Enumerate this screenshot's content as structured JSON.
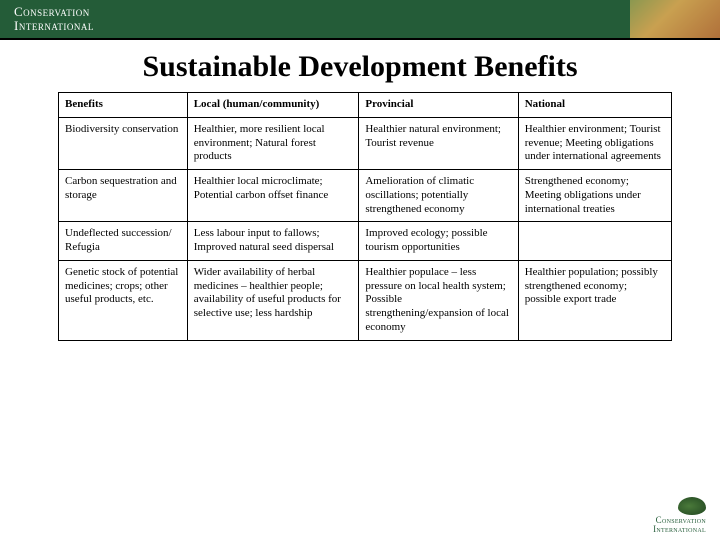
{
  "brand": {
    "line1": "Conservation",
    "line2": "International"
  },
  "title": "Sustainable Development Benefits",
  "table": {
    "headers": [
      "Benefits",
      "Local (human/community)",
      "Provincial",
      "National"
    ],
    "rows": [
      {
        "c0": "Biodiversity conservation",
        "c1": "Healthier, more resilient local environment; Natural forest products",
        "c2": "Healthier natural environment; Tourist revenue",
        "c3": "Healthier environment; Tourist revenue; Meeting obligations under international agreements"
      },
      {
        "c0": "Carbon sequestration and storage",
        "c1": "Healthier local microclimate; Potential carbon offset finance",
        "c2": "Amelioration of climatic oscillations; potentially strengthened economy",
        "c3": "Strengthened economy; Meeting obligations under international treaties"
      },
      {
        "c0": "Undeflected succession/ Refugia",
        "c1": "Less labour input to fallows; Improved natural seed dispersal",
        "c2": "Improved ecology; possible tourism opportunities",
        "c3": ""
      },
      {
        "c0": "Genetic stock of potential medicines; crops; other useful products, etc.",
        "c1": "Wider availability of herbal medicines – healthier people; availability of useful products for selective use; less hardship",
        "c2": "Healthier populace – less pressure on local health system; Possible strengthening/expansion of local economy",
        "c3": "Healthier population; possibly strengthened economy; possible export trade"
      }
    ]
  },
  "footer": {
    "line1": "Conservation",
    "line2": "International"
  },
  "colors": {
    "brand_green": "#245c38",
    "text": "#000000",
    "background": "#ffffff"
  }
}
